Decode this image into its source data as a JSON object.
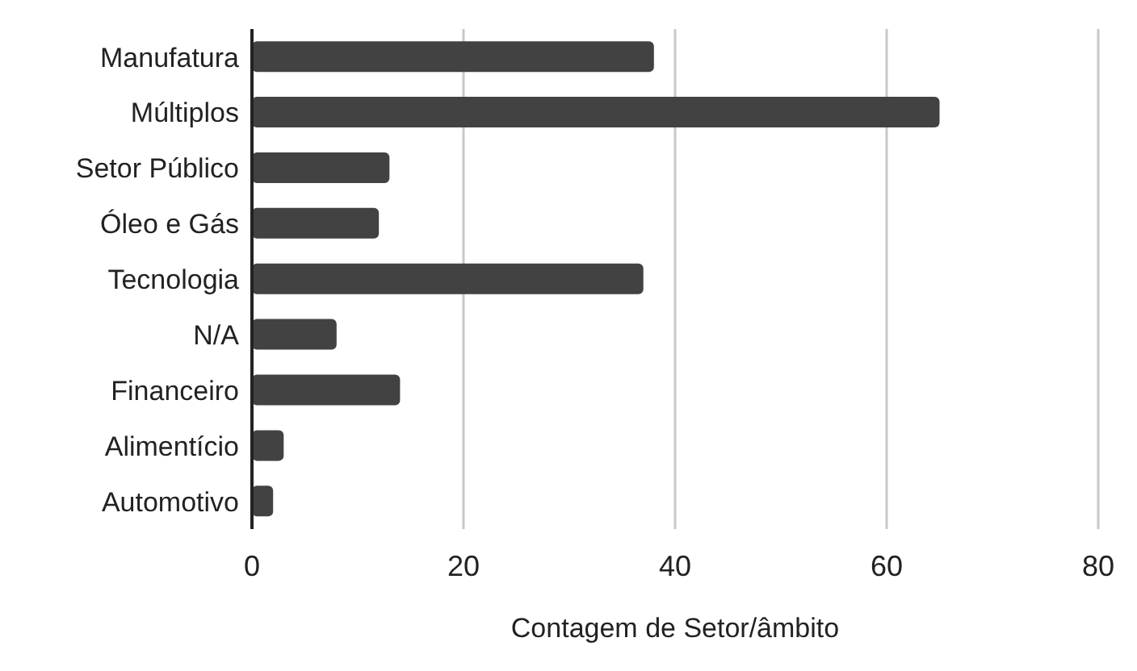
{
  "chart_data": {
    "type": "bar",
    "orientation": "horizontal",
    "xlabel": "Contagem de Setor/âmbito",
    "categories": [
      "Manufatura",
      "Múltiplos",
      "Setor Público",
      "Óleo e Gás",
      "Tecnologia",
      "N/A",
      "Financeiro",
      "Alimentício",
      "Automotivo"
    ],
    "values": [
      38,
      65,
      13,
      12,
      37,
      8,
      14,
      3,
      2
    ],
    "color": "#424242",
    "xlim": [
      0,
      80
    ],
    "xticks": [
      0,
      20,
      40,
      60,
      80
    ],
    "grid": "x"
  }
}
